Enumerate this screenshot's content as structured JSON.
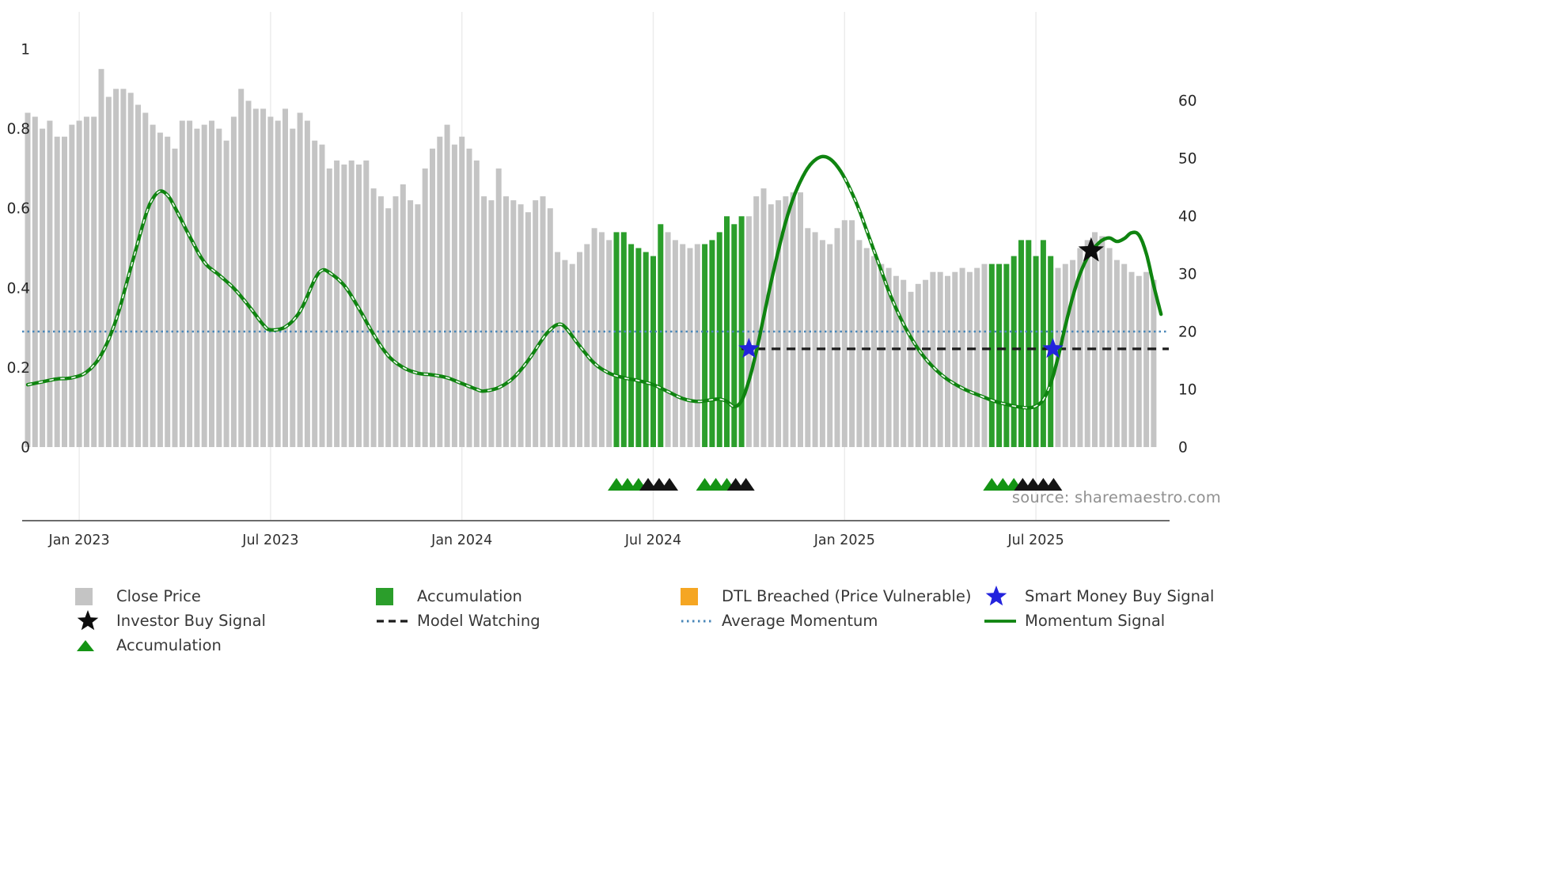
{
  "source_text": "source: sharemaestro.com",
  "colors": {
    "bar_gray": "#c4c4c4",
    "bar_green": "#2b9e2b",
    "momentum_green": "#0f8410",
    "avg_momentum_blue": "#4a87b8",
    "model_watching_black": "#1c1c1c",
    "smart_money_blue": "#2323dd",
    "investor_black": "#0d0d0d",
    "dtl_orange": "#f5a623",
    "triangle_green": "#149414",
    "triangle_black": "#141414",
    "grid_gray": "#ebebeb",
    "axis_gray": "#3a3a3a",
    "tick_text": "#262626"
  },
  "legend": {
    "items": [
      {
        "label": "Close Price",
        "icon": "square",
        "color_key": "bar_gray"
      },
      {
        "label": "Accumulation",
        "icon": "square",
        "color_key": "bar_green"
      },
      {
        "label": "DTL Breached (Price Vulnerable)",
        "icon": "square",
        "color_key": "dtl_orange"
      },
      {
        "label": "Smart Money Buy Signal",
        "icon": "star",
        "color_key": "smart_money_blue"
      },
      {
        "label": "Investor Buy Signal",
        "icon": "star",
        "color_key": "investor_black"
      },
      {
        "label": "Model Watching",
        "icon": "dashed-line",
        "color_key": "model_watching_black"
      },
      {
        "label": "Average Momentum",
        "icon": "dotted-line",
        "color_key": "avg_momentum_blue"
      },
      {
        "label": "Momentum Signal",
        "icon": "solid-line",
        "color_key": "momentum_green"
      },
      {
        "label": "Accumulation",
        "icon": "triangle",
        "color_key": "triangle_green"
      }
    ]
  },
  "chart_data": {
    "type": "combo-bar-line",
    "title": "",
    "x_unit": "weekly",
    "left_ylim": [
      0,
      1
    ],
    "right_ylim": [
      0,
      69
    ],
    "grid": "vertical-only",
    "axes": {
      "left": {
        "ticks": [
          {
            "label": "1",
            "value": 1
          },
          {
            "label": "0.8",
            "value": 0.8
          },
          {
            "label": "0.6",
            "value": 0.6
          },
          {
            "label": "0.4",
            "value": 0.4
          },
          {
            "label": "0.2",
            "value": 0.2
          },
          {
            "label": "0",
            "value": 0
          }
        ]
      },
      "right": {
        "ticks": [
          {
            "label": "60",
            "value": 60
          },
          {
            "label": "50",
            "value": 50
          },
          {
            "label": "40",
            "value": 40
          },
          {
            "label": "30",
            "value": 30
          },
          {
            "label": "20",
            "value": 20
          },
          {
            "label": "10",
            "value": 10
          },
          {
            "label": "0",
            "value": 0
          }
        ]
      },
      "x": {
        "ticks": [
          {
            "label": "Jan 2023",
            "index": 7
          },
          {
            "label": "Jul 2023",
            "index": 33
          },
          {
            "label": "Jan 2024",
            "index": 59
          },
          {
            "label": "Jul 2024",
            "index": 85
          },
          {
            "label": "Jan 2025",
            "index": 111
          },
          {
            "label": "Jul 2025",
            "index": 137
          }
        ]
      }
    },
    "bars": {
      "name": "Close Price",
      "green_name": "Accumulation",
      "axis": "left",
      "values": [
        0.84,
        0.83,
        0.8,
        0.82,
        0.78,
        0.78,
        0.81,
        0.82,
        0.83,
        0.83,
        0.95,
        0.88,
        0.9,
        0.9,
        0.89,
        0.86,
        0.84,
        0.81,
        0.79,
        0.78,
        0.75,
        0.82,
        0.82,
        0.8,
        0.81,
        0.82,
        0.8,
        0.77,
        0.83,
        0.9,
        0.87,
        0.85,
        0.85,
        0.83,
        0.82,
        0.85,
        0.8,
        0.84,
        0.82,
        0.77,
        0.76,
        0.7,
        0.72,
        0.71,
        0.72,
        0.71,
        0.72,
        0.65,
        0.63,
        0.6,
        0.63,
        0.66,
        0.62,
        0.61,
        0.7,
        0.75,
        0.78,
        0.81,
        0.76,
        0.78,
        0.75,
        0.72,
        0.63,
        0.62,
        0.7,
        0.63,
        0.62,
        0.61,
        0.59,
        0.62,
        0.63,
        0.6,
        0.49,
        0.47,
        0.46,
        0.49,
        0.51,
        0.55,
        0.54,
        0.52,
        0.54,
        0.54,
        0.51,
        0.5,
        0.49,
        0.48,
        0.56,
        0.54,
        0.52,
        0.51,
        0.5,
        0.51,
        0.51,
        0.52,
        0.54,
        0.58,
        0.56,
        0.58,
        0.58,
        0.63,
        0.65,
        0.61,
        0.62,
        0.63,
        0.64,
        0.64,
        0.55,
        0.54,
        0.52,
        0.51,
        0.55,
        0.57,
        0.57,
        0.52,
        0.5,
        0.48,
        0.46,
        0.45,
        0.43,
        0.42,
        0.39,
        0.41,
        0.42,
        0.44,
        0.44,
        0.43,
        0.44,
        0.45,
        0.44,
        0.45,
        0.46,
        0.46,
        0.46,
        0.46,
        0.48,
        0.52,
        0.52,
        0.48,
        0.52,
        0.48,
        0.45,
        0.46,
        0.47,
        0.5,
        0.52,
        0.54,
        0.53,
        0.5,
        0.47,
        0.46,
        0.44,
        0.43,
        0.44,
        0.42
      ],
      "green_ranges": [
        [
          80,
          86
        ],
        [
          92,
          97
        ],
        [
          131,
          139
        ]
      ]
    },
    "momentum": {
      "name": "Momentum Signal",
      "axis": "right",
      "points": [
        [
          0,
          10.8
        ],
        [
          2,
          11.3
        ],
        [
          4,
          11.8
        ],
        [
          6,
          12.0
        ],
        [
          8,
          13.0
        ],
        [
          10,
          16.0
        ],
        [
          12,
          22.0
        ],
        [
          14,
          31.0
        ],
        [
          16,
          40.0
        ],
        [
          17,
          43.0
        ],
        [
          18,
          44.3
        ],
        [
          19,
          43.6
        ],
        [
          20,
          41.5
        ],
        [
          22,
          36.5
        ],
        [
          24,
          32.0
        ],
        [
          26,
          29.8
        ],
        [
          28,
          27.5
        ],
        [
          30,
          24.5
        ],
        [
          32,
          21.2
        ],
        [
          33,
          20.3
        ],
        [
          35,
          20.8
        ],
        [
          37,
          23.5
        ],
        [
          39,
          29.0
        ],
        [
          40,
          30.6
        ],
        [
          41,
          30.2
        ],
        [
          43,
          28.0
        ],
        [
          45,
          24.0
        ],
        [
          47,
          19.5
        ],
        [
          49,
          15.8
        ],
        [
          51,
          13.8
        ],
        [
          53,
          12.8
        ],
        [
          55,
          12.5
        ],
        [
          57,
          12.0
        ],
        [
          59,
          11.0
        ],
        [
          61,
          10.0
        ],
        [
          62,
          9.7
        ],
        [
          64,
          10.3
        ],
        [
          66,
          12.0
        ],
        [
          68,
          15.0
        ],
        [
          70,
          18.8
        ],
        [
          71,
          20.3
        ],
        [
          72,
          21.2
        ],
        [
          73,
          20.8
        ],
        [
          75,
          17.5
        ],
        [
          77,
          14.5
        ],
        [
          79,
          12.8
        ],
        [
          81,
          12.0
        ],
        [
          83,
          11.5
        ],
        [
          85,
          10.8
        ],
        [
          87,
          9.6
        ],
        [
          89,
          8.4
        ],
        [
          91,
          7.9
        ],
        [
          93,
          8.2
        ],
        [
          94,
          8.3
        ],
        [
          95,
          7.9
        ],
        [
          96,
          7.0
        ],
        [
          97,
          8.0
        ],
        [
          98,
          11.5
        ],
        [
          99,
          16.5
        ],
        [
          100,
          22.5
        ],
        [
          101,
          28.5
        ],
        [
          102,
          34.0
        ],
        [
          103,
          39.0
        ],
        [
          104,
          43.0
        ],
        [
          105,
          46.0
        ],
        [
          106,
          48.3
        ],
        [
          107,
          49.7
        ],
        [
          108,
          50.3
        ],
        [
          109,
          49.9
        ],
        [
          110,
          48.6
        ],
        [
          111,
          46.6
        ],
        [
          112,
          44.0
        ],
        [
          113,
          41.0
        ],
        [
          114,
          37.5
        ],
        [
          115,
          34.0
        ],
        [
          116,
          30.5
        ],
        [
          117,
          27.0
        ],
        [
          118,
          24.0
        ],
        [
          119,
          21.3
        ],
        [
          120,
          19.0
        ],
        [
          121,
          17.0
        ],
        [
          122,
          15.3
        ],
        [
          123,
          13.9
        ],
        [
          124,
          12.7
        ],
        [
          125,
          11.7
        ],
        [
          126,
          10.9
        ],
        [
          127,
          10.2
        ],
        [
          128,
          9.6
        ],
        [
          129,
          9.1
        ],
        [
          130,
          8.6
        ],
        [
          131,
          8.1
        ],
        [
          132,
          7.7
        ],
        [
          133,
          7.4
        ],
        [
          134,
          7.1
        ],
        [
          135,
          6.9
        ],
        [
          136,
          6.8
        ],
        [
          137,
          7.1
        ],
        [
          138,
          8.2
        ],
        [
          139,
          11.0
        ],
        [
          140,
          15.5
        ],
        [
          141,
          21.0
        ],
        [
          142,
          26.0
        ],
        [
          143,
          30.0
        ],
        [
          144,
          32.8
        ],
        [
          145,
          34.6
        ],
        [
          146,
          35.8
        ],
        [
          147,
          36.2
        ],
        [
          148,
          35.6
        ],
        [
          149,
          36.1
        ],
        [
          150,
          37.1
        ],
        [
          151,
          36.7
        ],
        [
          152,
          33.5
        ],
        [
          153,
          28.0
        ],
        [
          154,
          23.0
        ]
      ]
    },
    "average_momentum": {
      "name": "Average Momentum",
      "axis": "right",
      "value": 20
    },
    "model_watching": {
      "name": "Model Watching",
      "axis": "right",
      "value": 17,
      "start_index": 97
    },
    "smart_money_stars": [
      {
        "index": 98,
        "value": 17
      },
      {
        "index": 139.3,
        "value": 17
      }
    ],
    "investor_stars": [
      {
        "index": 144.5,
        "value": 34
      }
    ],
    "accumulation_markers": [
      {
        "index": 80,
        "color": "green"
      },
      {
        "index": 81.5,
        "color": "green"
      },
      {
        "index": 83,
        "color": "green"
      },
      {
        "index": 84.3,
        "color": "black"
      },
      {
        "index": 85.8,
        "color": "black"
      },
      {
        "index": 87.2,
        "color": "black"
      },
      {
        "index": 92,
        "color": "green"
      },
      {
        "index": 93.5,
        "color": "green"
      },
      {
        "index": 95,
        "color": "green"
      },
      {
        "index": 96.2,
        "color": "black"
      },
      {
        "index": 97.6,
        "color": "black"
      },
      {
        "index": 131,
        "color": "green"
      },
      {
        "index": 132.5,
        "color": "green"
      },
      {
        "index": 134,
        "color": "green"
      },
      {
        "index": 135.2,
        "color": "black"
      },
      {
        "index": 136.6,
        "color": "black"
      },
      {
        "index": 138,
        "color": "black"
      },
      {
        "index": 139.4,
        "color": "black"
      }
    ]
  }
}
